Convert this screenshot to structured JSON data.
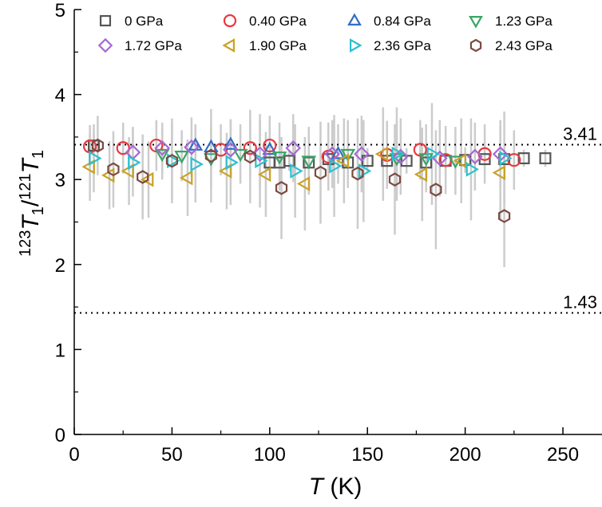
{
  "chart_data": {
    "type": "scatter",
    "title": "",
    "xlabel": {
      "main": "T",
      "unit": " (K)"
    },
    "ylabel": {
      "pre_sup": "123",
      "main1": "T",
      "sub1": "1",
      "slash": "/",
      "mid_sup": "121",
      "main2": "T",
      "sub2": "1"
    },
    "xlim": [
      0,
      270
    ],
    "ylim": [
      0,
      5
    ],
    "x_ticks": [
      0,
      50,
      100,
      150,
      200,
      250
    ],
    "y_ticks": [
      0,
      1,
      2,
      3,
      4,
      5
    ],
    "x_tick_labels": [
      "0",
      "50",
      "100",
      "150",
      "200",
      "250"
    ],
    "y_tick_labels": [
      "0",
      "1",
      "2",
      "3",
      "4",
      "5"
    ],
    "grid": false,
    "legend_position": "top",
    "reference_lines": [
      {
        "y": 3.41,
        "label": "3.41",
        "style": "dotted"
      },
      {
        "y": 1.43,
        "label": "1.43",
        "style": "dotted"
      }
    ],
    "series": [
      {
        "name": "0 GPa",
        "marker": "square",
        "color": "#555555",
        "x": [
          10,
          100,
          105,
          110,
          120,
          130,
          140,
          150,
          160,
          170,
          180,
          190,
          200,
          210,
          220,
          230,
          241
        ],
        "y": [
          3.4,
          3.2,
          3.2,
          3.22,
          3.2,
          3.24,
          3.2,
          3.22,
          3.22,
          3.22,
          3.2,
          3.22,
          3.23,
          3.24,
          3.24,
          3.25,
          3.25
        ],
        "err": [
          0.15,
          0.12,
          0.12,
          0.12,
          0.12,
          0.15,
          0.15,
          0.15,
          0.15,
          0.15,
          0.15,
          0.15,
          0.15,
          0.12,
          0.12,
          0.1,
          0.1
        ]
      },
      {
        "name": "0.40 GPa",
        "marker": "circle",
        "color": "#e8393f",
        "x": [
          8,
          25,
          42,
          75,
          90,
          100,
          130,
          160,
          177,
          190,
          210,
          225
        ],
        "y": [
          3.39,
          3.37,
          3.4,
          3.35,
          3.37,
          3.4,
          3.27,
          3.29,
          3.35,
          3.23,
          3.3,
          3.23
        ],
        "err": [
          0.25,
          0.3,
          0.3,
          0.3,
          0.35,
          0.35,
          0.4,
          0.4,
          0.35,
          0.4,
          0.35,
          0.35
        ]
      },
      {
        "name": "0.84 GPa",
        "marker": "triangle-up",
        "color": "#2f6fc4",
        "x": [
          62,
          70,
          80,
          100,
          135
        ],
        "y": [
          3.4,
          3.38,
          3.41,
          3.35,
          3.3
        ],
        "err": [
          0.25,
          0.25,
          0.3,
          0.3,
          0.35
        ]
      },
      {
        "name": "1.23 GPa",
        "marker": "triangle-down",
        "color": "#3aa566",
        "x": [
          45,
          55,
          70,
          85,
          105,
          120,
          140,
          165,
          180,
          195
        ],
        "y": [
          3.3,
          3.28,
          3.25,
          3.3,
          3.27,
          3.22,
          3.3,
          3.25,
          3.25,
          3.22
        ],
        "err": [
          0.3,
          0.3,
          0.35,
          0.35,
          0.4,
          0.4,
          0.4,
          0.45,
          0.4,
          0.4
        ]
      },
      {
        "name": "1.72 GPa",
        "marker": "diamond",
        "color": "#a569d4",
        "x": [
          30,
          45,
          60,
          80,
          95,
          112,
          132,
          147,
          167,
          187,
          205,
          218
        ],
        "y": [
          3.32,
          3.37,
          3.38,
          3.35,
          3.3,
          3.37,
          3.3,
          3.3,
          3.27,
          3.25,
          3.27,
          3.3
        ],
        "err": [
          0.3,
          0.3,
          0.35,
          0.35,
          0.4,
          0.4,
          0.4,
          0.45,
          0.45,
          0.45,
          0.4,
          0.4
        ]
      },
      {
        "name": "1.90 GPa",
        "marker": "triangle-left",
        "color": "#c9a227",
        "x": [
          8,
          18,
          28,
          38,
          58,
          78,
          98,
          118,
          138,
          158,
          178,
          198,
          218
        ],
        "y": [
          3.15,
          3.05,
          3.1,
          3.0,
          3.02,
          3.1,
          3.06,
          2.95,
          3.22,
          3.3,
          3.06,
          3.22,
          3.08
        ],
        "err": [
          0.4,
          0.4,
          0.4,
          0.45,
          0.45,
          0.45,
          0.5,
          0.55,
          0.5,
          0.55,
          0.55,
          0.5,
          0.55
        ]
      },
      {
        "name": "2.36 GPa",
        "marker": "triangle-right",
        "color": "#2cc0cf",
        "x": [
          10,
          30,
          50,
          62,
          80,
          95,
          113,
          133,
          148,
          165,
          183,
          203,
          220
        ],
        "y": [
          3.25,
          3.2,
          3.22,
          3.18,
          3.2,
          3.22,
          3.1,
          3.16,
          3.1,
          3.3,
          3.3,
          3.12,
          3.25
        ],
        "err": [
          0.4,
          0.4,
          0.45,
          0.45,
          0.5,
          0.55,
          0.55,
          0.6,
          0.6,
          0.55,
          0.6,
          0.6,
          0.55
        ]
      },
      {
        "name": "2.43 GPa",
        "marker": "hexagon",
        "color": "#7b4a42",
        "x": [
          12,
          20,
          35,
          50,
          70,
          90,
          106,
          126,
          145,
          164,
          185,
          220
        ],
        "y": [
          3.4,
          3.12,
          3.03,
          3.22,
          3.28,
          3.27,
          2.9,
          3.08,
          3.07,
          3.0,
          2.88,
          2.57
        ],
        "err": [
          0.35,
          0.45,
          0.5,
          0.5,
          0.55,
          0.55,
          0.6,
          0.6,
          0.65,
          0.65,
          0.7,
          0.6
        ]
      }
    ]
  }
}
